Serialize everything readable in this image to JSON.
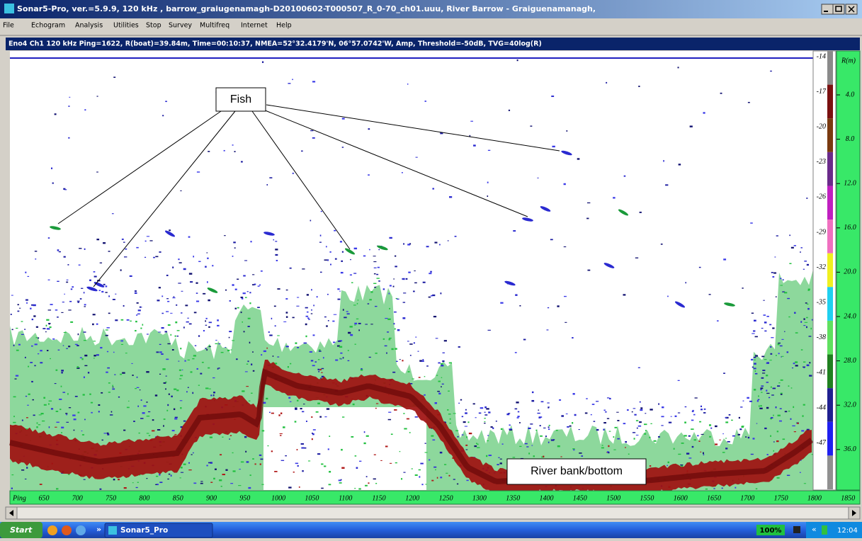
{
  "window": {
    "title": "Sonar5-Pro, ver.=5.9.9, 120 kHz , barrow_graiugenamagh-D20100602-T000507_R_0-70_ch01.uuu, River Barrow - Graiguenamanagh,"
  },
  "menu": [
    "File",
    "Echogram",
    "Analysis",
    "Utilities",
    "Stop",
    "Survey",
    "Multifreq",
    "Internet",
    "Help"
  ],
  "info_bar": "Eno4 Ch1 120 kHz Ping=1622, R(boat)=39.84m, Time=00:10:37, NMEA=52°32.4179'N, 06°57.0742'W, Amp, Threshold=-50dB, TVG=40log(R)",
  "echogram": {
    "annotations": {
      "fish": "Fish",
      "bottom": "River bank/bottom"
    },
    "color_scale": [
      "-14",
      "-17",
      "-20",
      "-23",
      "-26",
      "-29",
      "-32",
      "-35",
      "-38",
      "-41",
      "-44",
      "-47"
    ],
    "range_axis": {
      "label": "R(m)",
      "ticks": [
        "4.0",
        "8.0",
        "12.0",
        "16.0",
        "20.0",
        "24.0",
        "28.0",
        "32.0",
        "36.0"
      ]
    },
    "ping_axis": {
      "label": "Ping",
      "ticks": [
        "650",
        "700",
        "750",
        "800",
        "850",
        "900",
        "950",
        "1000",
        "1050",
        "1100",
        "1150",
        "1200",
        "1250",
        "1300",
        "1350",
        "1400",
        "1450",
        "1500",
        "1550",
        "1600",
        "1650",
        "1700",
        "1750",
        "1800",
        "1850"
      ]
    }
  },
  "taskbar": {
    "start": "Start",
    "chevron": "»",
    "task": "Sonar5_Pro",
    "zoom": "100%",
    "tray_chevron": "«",
    "clock": "12:04"
  }
}
